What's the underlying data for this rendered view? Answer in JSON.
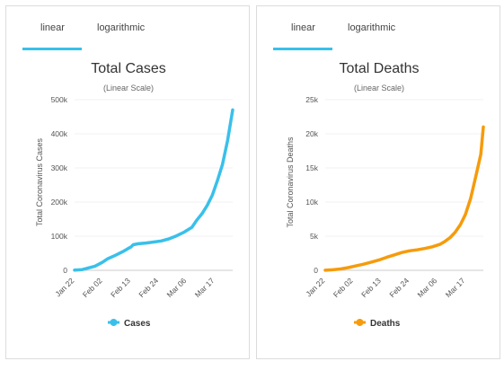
{
  "tabs": {
    "linear": "linear",
    "logarithmic": "logarithmic"
  },
  "chart_data": [
    {
      "type": "line",
      "title": "Total Cases",
      "subtitle": "(Linear Scale)",
      "ylabel": "Total Coronavirus Cases",
      "xlabel": "",
      "ylim": [
        0,
        500000
      ],
      "yticks": [
        "0",
        "100k",
        "200k",
        "300k",
        "400k",
        "500k"
      ],
      "ytick_values": [
        0,
        100000,
        200000,
        300000,
        400000,
        500000
      ],
      "xticks": [
        "Jan 22",
        "Feb 02",
        "Feb 13",
        "Feb 24",
        "Mar 06",
        "Mar 17"
      ],
      "xtick_days": [
        0,
        11,
        22,
        33,
        44,
        55
      ],
      "x_days": [
        0,
        3,
        5,
        8,
        11,
        13,
        16,
        19,
        21,
        22,
        23,
        25,
        28,
        31,
        34,
        37,
        40,
        43,
        46,
        48,
        50,
        52,
        54,
        56,
        58,
        60,
        62
      ],
      "series": [
        {
          "name": "Cases",
          "color": "#39c0ea",
          "values": [
            580,
            2000,
            6000,
            12000,
            24000,
            34000,
            44000,
            55000,
            64000,
            68000,
            75000,
            78000,
            80000,
            83000,
            86000,
            92000,
            101000,
            112000,
            126000,
            148000,
            166000,
            190000,
            220000,
            263000,
            310000,
            380000,
            470000
          ]
        }
      ]
    },
    {
      "type": "line",
      "title": "Total Deaths",
      "subtitle": "(Linear Scale)",
      "ylabel": "Total Coronavirus Deaths",
      "xlabel": "",
      "ylim": [
        0,
        25000
      ],
      "yticks": [
        "0",
        "5k",
        "10k",
        "15k",
        "20k",
        "25k"
      ],
      "ytick_values": [
        0,
        5000,
        10000,
        15000,
        20000,
        25000
      ],
      "xticks": [
        "Jan 22",
        "Feb 02",
        "Feb 13",
        "Feb 24",
        "Mar 06",
        "Mar 17"
      ],
      "xtick_days": [
        0,
        11,
        22,
        33,
        44,
        55
      ],
      "x_days": [
        0,
        3,
        6,
        9,
        12,
        15,
        18,
        21,
        24,
        27,
        30,
        33,
        36,
        39,
        42,
        45,
        47,
        49,
        51,
        53,
        55,
        57,
        59,
        61,
        62
      ],
      "series": [
        {
          "name": "Deaths",
          "color": "#f69b0b",
          "values": [
            17,
            80,
            200,
            400,
            650,
            900,
            1200,
            1500,
            1900,
            2250,
            2600,
            2850,
            3000,
            3200,
            3450,
            3800,
            4250,
            4800,
            5600,
            6700,
            8200,
            10500,
            13700,
            17000,
            21000
          ]
        }
      ]
    }
  ]
}
